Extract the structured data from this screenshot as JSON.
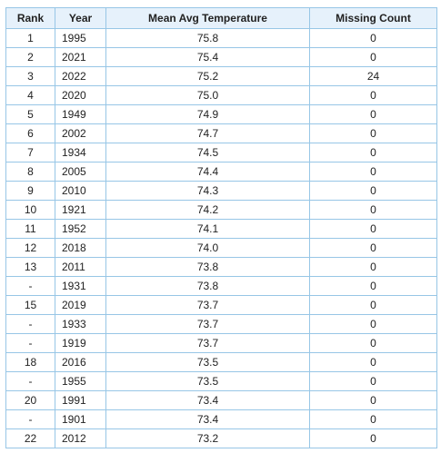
{
  "table": {
    "headers": [
      "Rank",
      "Year",
      "Mean Avg Temperature",
      "Missing Count"
    ],
    "rows": [
      {
        "rank": "1",
        "year": "1995",
        "temp": "75.8",
        "missing": "0"
      },
      {
        "rank": "2",
        "year": "2021",
        "temp": "75.4",
        "missing": "0"
      },
      {
        "rank": "3",
        "year": "2022",
        "temp": "75.2",
        "missing": "24"
      },
      {
        "rank": "4",
        "year": "2020",
        "temp": "75.0",
        "missing": "0"
      },
      {
        "rank": "5",
        "year": "1949",
        "temp": "74.9",
        "missing": "0"
      },
      {
        "rank": "6",
        "year": "2002",
        "temp": "74.7",
        "missing": "0"
      },
      {
        "rank": "7",
        "year": "1934",
        "temp": "74.5",
        "missing": "0"
      },
      {
        "rank": "8",
        "year": "2005",
        "temp": "74.4",
        "missing": "0"
      },
      {
        "rank": "9",
        "year": "2010",
        "temp": "74.3",
        "missing": "0"
      },
      {
        "rank": "10",
        "year": "1921",
        "temp": "74.2",
        "missing": "0"
      },
      {
        "rank": "11",
        "year": "1952",
        "temp": "74.1",
        "missing": "0"
      },
      {
        "rank": "12",
        "year": "2018",
        "temp": "74.0",
        "missing": "0"
      },
      {
        "rank": "13",
        "year": "2011",
        "temp": "73.8",
        "missing": "0"
      },
      {
        "rank": "-",
        "year": "1931",
        "temp": "73.8",
        "missing": "0"
      },
      {
        "rank": "15",
        "year": "2019",
        "temp": "73.7",
        "missing": "0"
      },
      {
        "rank": "-",
        "year": "1933",
        "temp": "73.7",
        "missing": "0"
      },
      {
        "rank": "-",
        "year": "1919",
        "temp": "73.7",
        "missing": "0"
      },
      {
        "rank": "18",
        "year": "2016",
        "temp": "73.5",
        "missing": "0"
      },
      {
        "rank": "-",
        "year": "1955",
        "temp": "73.5",
        "missing": "0"
      },
      {
        "rank": "20",
        "year": "1991",
        "temp": "73.4",
        "missing": "0"
      },
      {
        "rank": "-",
        "year": "1901",
        "temp": "73.4",
        "missing": "0"
      },
      {
        "rank": "22",
        "year": "2012",
        "temp": "73.2",
        "missing": "0"
      }
    ]
  },
  "colors": {
    "border": "#97c6e6",
    "header_bg": "#e6f1fb"
  }
}
